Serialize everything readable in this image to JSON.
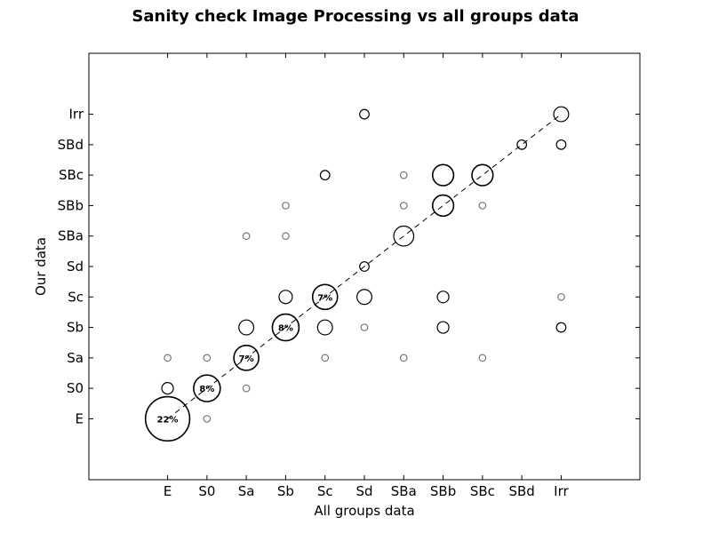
{
  "chart_data": {
    "type": "scatter",
    "title": "Sanity check Image Processing vs all groups data",
    "xlabel": "All groups data",
    "ylabel": "Our data",
    "categories": [
      "E",
      "S0",
      "Sa",
      "Sb",
      "Sc",
      "Sd",
      "SBa",
      "SBb",
      "SBc",
      "SBd",
      "Irr"
    ],
    "xlim": [
      -2,
      12
    ],
    "ylim": [
      -2,
      12
    ],
    "grid": false,
    "diagonal_line": true,
    "points": [
      {
        "x": "E",
        "y": "E",
        "size": 22,
        "label": "22%"
      },
      {
        "x": "S0",
        "y": "S0",
        "size": 8,
        "label": "8%"
      },
      {
        "x": "Sa",
        "y": "Sa",
        "size": 7,
        "label": "7%"
      },
      {
        "x": "Sb",
        "y": "Sb",
        "size": 8,
        "label": "8%"
      },
      {
        "x": "Sc",
        "y": "Sc",
        "size": 7,
        "label": "7%"
      },
      {
        "x": "S0",
        "y": "E",
        "size": 0.5
      },
      {
        "x": "E",
        "y": "S0",
        "size": 1.5
      },
      {
        "x": "Sa",
        "y": "S0",
        "size": 0.5
      },
      {
        "x": "E",
        "y": "Sa",
        "size": 0.5
      },
      {
        "x": "S0",
        "y": "Sa",
        "size": 0.5
      },
      {
        "x": "Sc",
        "y": "Sa",
        "size": 0.5
      },
      {
        "x": "SBa",
        "y": "Sa",
        "size": 0.5
      },
      {
        "x": "SBc",
        "y": "Sa",
        "size": 0.5
      },
      {
        "x": "Sa",
        "y": "Sb",
        "size": 2.5
      },
      {
        "x": "Sc",
        "y": "Sb",
        "size": 2.5
      },
      {
        "x": "Sd",
        "y": "Sb",
        "size": 0.5
      },
      {
        "x": "SBb",
        "y": "Sb",
        "size": 1.5
      },
      {
        "x": "Irr",
        "y": "Sb",
        "size": 1
      },
      {
        "x": "Sb",
        "y": "Sc",
        "size": 2
      },
      {
        "x": "Sd",
        "y": "Sc",
        "size": 2.5
      },
      {
        "x": "SBb",
        "y": "Sc",
        "size": 1.5
      },
      {
        "x": "Irr",
        "y": "Sc",
        "size": 0.5
      },
      {
        "x": "Sd",
        "y": "Sd",
        "size": 1
      },
      {
        "x": "Sa",
        "y": "SBa",
        "size": 0.5
      },
      {
        "x": "Sb",
        "y": "SBa",
        "size": 0.5
      },
      {
        "x": "SBa",
        "y": "SBa",
        "size": 4.5
      },
      {
        "x": "Sb",
        "y": "SBb",
        "size": 0.5
      },
      {
        "x": "SBa",
        "y": "SBb",
        "size": 0.5
      },
      {
        "x": "SBb",
        "y": "SBb",
        "size": 5
      },
      {
        "x": "SBc",
        "y": "SBb",
        "size": 0.5
      },
      {
        "x": "Sc",
        "y": "SBc",
        "size": 1
      },
      {
        "x": "SBa",
        "y": "SBc",
        "size": 0.5
      },
      {
        "x": "SBb",
        "y": "SBc",
        "size": 5
      },
      {
        "x": "SBc",
        "y": "SBc",
        "size": 5
      },
      {
        "x": "SBd",
        "y": "SBd",
        "size": 1
      },
      {
        "x": "Irr",
        "y": "SBd",
        "size": 1
      },
      {
        "x": "Sd",
        "y": "Irr",
        "size": 1
      },
      {
        "x": "Irr",
        "y": "Irr",
        "size": 2.5
      }
    ]
  }
}
